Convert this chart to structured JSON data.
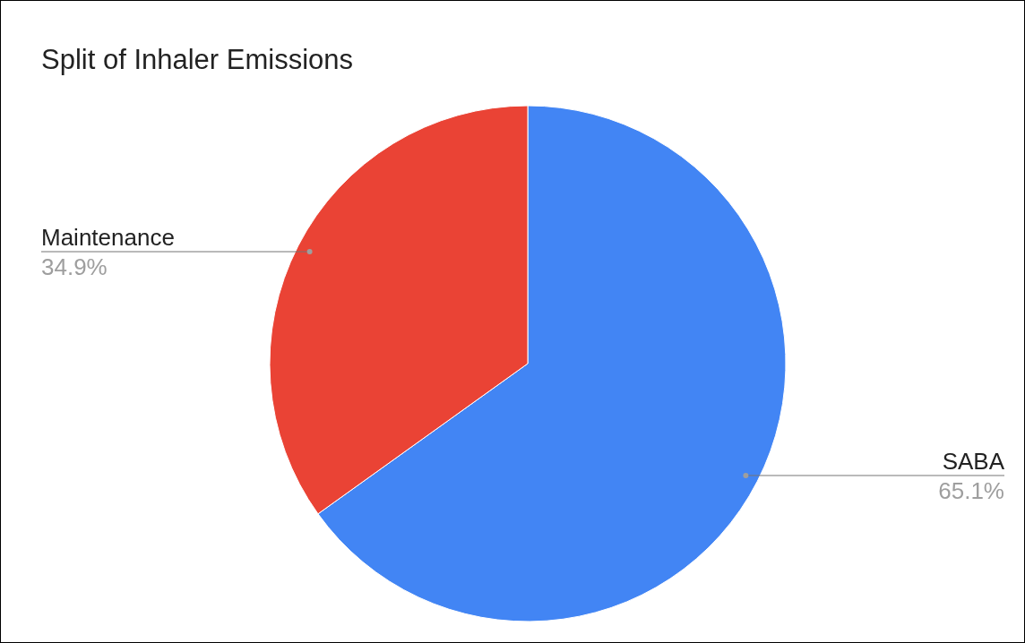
{
  "chart_data": {
    "type": "pie",
    "title": "Split of Inhaler Emissions",
    "categories": [
      "SABA",
      "Maintenance"
    ],
    "values": [
      65.1,
      34.9
    ],
    "colors": [
      "#4285f4",
      "#ea4335"
    ],
    "value_labels": [
      "65.1%",
      "34.9%"
    ],
    "legend": false
  }
}
